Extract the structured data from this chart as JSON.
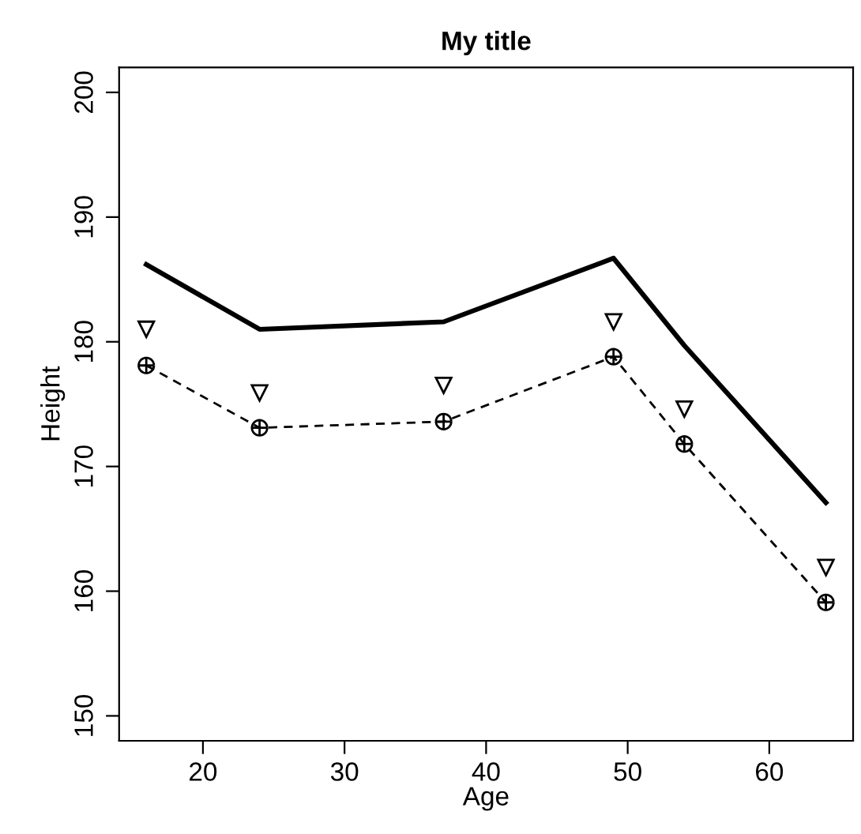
{
  "chart_data": {
    "type": "line",
    "title": "My title",
    "xlabel": "Age",
    "ylabel": "Height",
    "x": [
      16,
      24,
      37,
      49,
      54,
      64
    ],
    "series": [
      {
        "color": "#000000",
        "line_style": "solid",
        "marker": "none",
        "values": [
          186.2,
          181.0,
          181.6,
          186.7,
          179.7,
          167.1
        ]
      },
      {
        "color": "#000000",
        "line_style": "dashed",
        "marker": "cross",
        "values": [
          178.1,
          173.1,
          173.6,
          178.8,
          171.8,
          159.1
        ]
      },
      {
        "type": "scatter",
        "color": "#000000",
        "marker": "triangle",
        "values": [
          181.0,
          175.9,
          176.5,
          181.6,
          174.6,
          161.9
        ]
      }
    ],
    "xlim": [
      14.08,
      65.92
    ],
    "xticks": [
      20,
      30,
      40,
      50,
      60
    ],
    "ylim": [
      148,
      202
    ],
    "yticks": [
      150,
      160,
      170,
      180,
      190,
      200
    ],
    "grid": false,
    "legend": false
  }
}
